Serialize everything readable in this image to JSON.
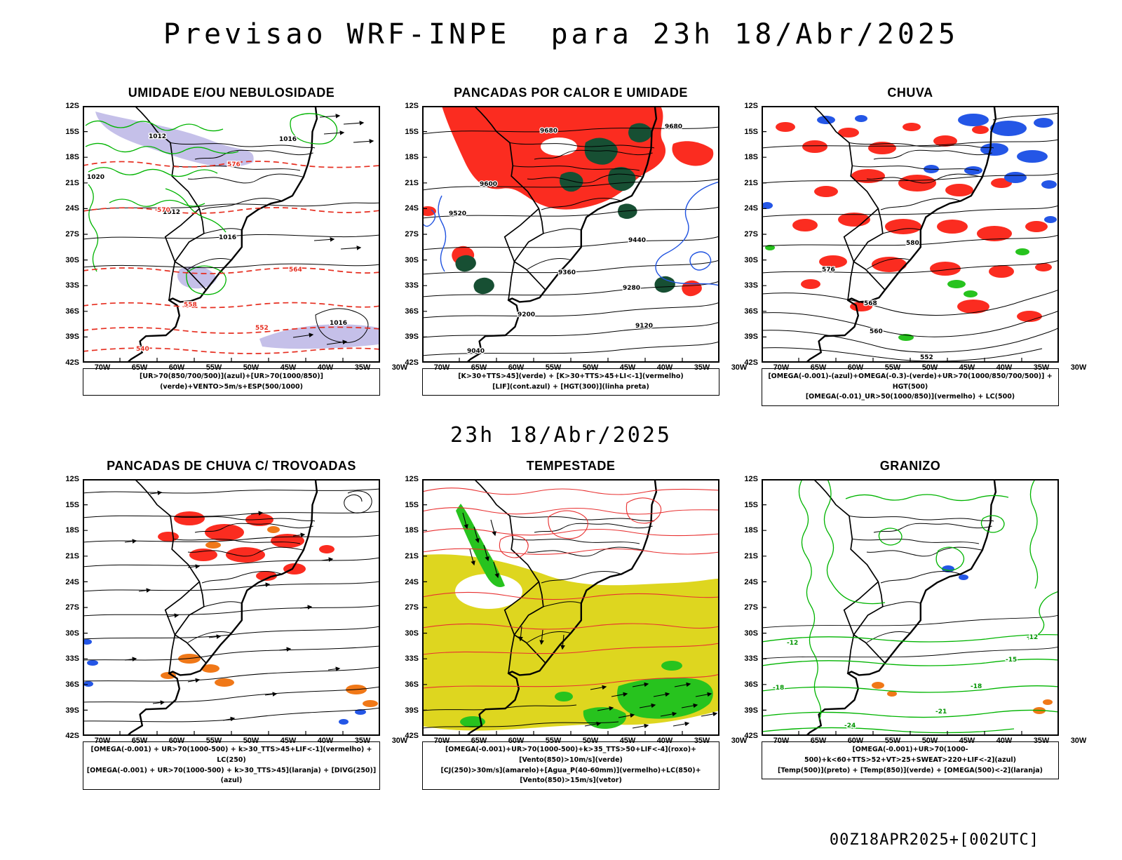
{
  "page": {
    "title": "Previsao WRF-INPE  para 23h 18/Abr/2025",
    "subtitle": "23h 18/Abr/2025",
    "footer": "00Z18APR2025+[002UTC]"
  },
  "axes": {
    "lat_ticks": [
      "12S",
      "15S",
      "18S",
      "21S",
      "24S",
      "27S",
      "30S",
      "33S",
      "36S",
      "39S",
      "42S"
    ],
    "lon_ticks": [
      "70W",
      "65W",
      "60W",
      "55W",
      "50W",
      "45W",
      "40W",
      "35W",
      "30W"
    ]
  },
  "colors": {
    "contour_green": "#00b400",
    "contour_red": "#e62e20",
    "contour_blue": "#2053e0",
    "fill_red": "#fb2c20",
    "fill_dark_green": "#174f33",
    "fill_blue": "#2456e6",
    "fill_green": "#27c31e",
    "shade_purple": "#b6b0e4",
    "fill_yellow": "#ded61f",
    "fill_orange": "#f07818"
  },
  "panels": [
    {
      "title": "UMIDADE E/OU NEBULOSIDADE",
      "caption_lines": [
        "[UR>70(850/700/500)](azul)+[UR>70(1000/850)](verde)+VENTO>5m/s+ESP(500/1000)"
      ],
      "map_labels": [
        "1020",
        "1012",
        "1016",
        "1016",
        "1012",
        "1016",
        "576",
        "570",
        "564",
        "558",
        "552",
        "540"
      ]
    },
    {
      "title": "PANCADAS POR CALOR E UMIDADE",
      "caption_lines": [
        "[K>30+TTS>45](verde) + [K>30+TTS>45+LI<-1](vermelho)",
        "[LIF](cont.azul) + [HGT(300)](linha preta)"
      ],
      "map_labels": [
        "9680",
        "9680",
        "9600",
        "9520",
        "9440",
        "9360",
        "9280",
        "9200",
        "9120",
        "9040"
      ]
    },
    {
      "title": "CHUVA",
      "caption_lines": [
        "[OMEGA(-0.001)-(azul)+OMEGA(-0.3)-(verde)+UR>70(1000/850/700/500)] + HGT(500)",
        "[OMEGA(-0.01)_UR>50(1000/850)](vermelho) + LC(500)"
      ],
      "map_labels": [
        "580",
        "576",
        "568",
        "560",
        "552"
      ]
    },
    {
      "title": "PANCADAS DE CHUVA C/ TROVOADAS",
      "caption_lines": [
        "[OMEGA(-0.001) + UR>70(1000-500) + k>30_TTS>45+LIF<-1](vermelho) + LC(250)",
        "[OMEGA(-0.001) + UR>70(1000-500) + k>30_TTS>45](laranja) + [DIVG(250)](azul)"
      ],
      "map_labels": []
    },
    {
      "title": "TEMPESTADE",
      "caption_lines": [
        "[OMEGA(-0.001)+UR>70(1000-500)+k>35_TTS>50+LIF<-4](roxo)+[Vento(850)>10m/s](verde)",
        "[CJ(250)>30m/s](amarelo)+[Agua_P(40-60mm)](vermelho)+LC(850)+[Vento(850)>15m/s](vetor)"
      ],
      "map_labels": []
    },
    {
      "title": "GRANIZO",
      "caption_lines": [
        "[OMEGA(-0.001)+UR>70(1000-500)+k<60+TTS>52+VT>25+SWEAT>220+LIF<-2](azul)",
        "[Temp(500)](preto) + [Temp(850)](verde) + [OMEGA(500)<-2](laranja)"
      ],
      "map_labels": [
        "-12",
        "-15",
        "-18",
        "-21",
        "-24",
        "-12",
        "-18"
      ]
    }
  ]
}
